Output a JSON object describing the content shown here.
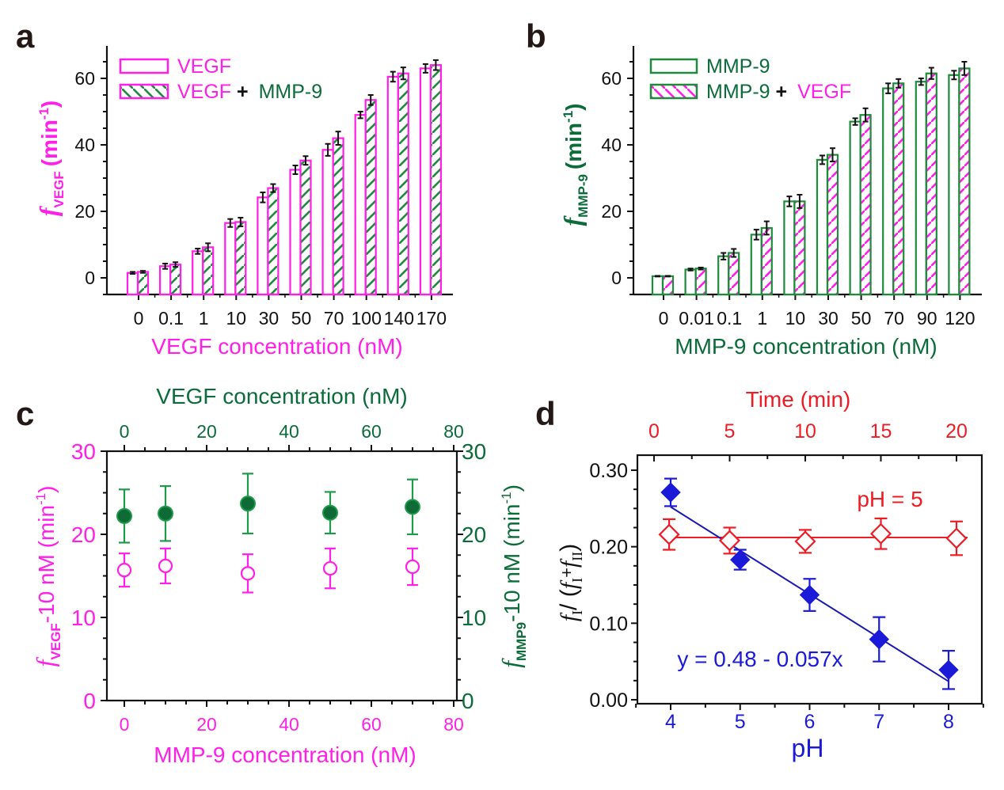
{
  "colors": {
    "magenta": "#ff1fe8",
    "green": "#0c6b3a",
    "bar_green": "#1f8a3c",
    "red": "#ee1c24",
    "blue": "#1a1ad8",
    "black": "#111111"
  },
  "chart_data": [
    {
      "panel_label": "a",
      "type": "bar",
      "categories": [
        "0",
        "0.1",
        "1",
        "10",
        "30",
        "50",
        "70",
        "100",
        "140",
        "170"
      ],
      "series": [
        {
          "name": "VEGF",
          "values": [
            1.5,
            3.5,
            8,
            16.5,
            24.2,
            32.5,
            38.5,
            49,
            60.5,
            63
          ],
          "errors": [
            0.3,
            0.8,
            0.8,
            1.2,
            1.5,
            1.3,
            1.8,
            1,
            1.5,
            1.3
          ],
          "fill": "none",
          "edge": "#ff1fe8"
        },
        {
          "name": "VEGF + MMP-9",
          "name_parts": [
            "VEGF",
            " + ",
            "MMP-9"
          ],
          "values": [
            1.8,
            4,
            9.2,
            16.8,
            27,
            35.3,
            42,
            53.5,
            61.5,
            64
          ],
          "errors": [
            0.3,
            0.7,
            1.2,
            1.3,
            1.2,
            1.3,
            2,
            1.5,
            1.8,
            1.5
          ],
          "fill": "hatched",
          "hatch_color": "#1f8a3c",
          "edge": "#ff1fe8"
        }
      ],
      "xlabel": "VEGF concentration (nM)",
      "ylabel": {
        "symbol": "f",
        "sub": "VEGF",
        "unit": "(min",
        "sup": "-1",
        "close": ")"
      },
      "yticks": [
        "0",
        "20",
        "40",
        "60"
      ],
      "ylim": [
        -5,
        69
      ],
      "legend": "top-left"
    },
    {
      "panel_label": "b",
      "type": "bar",
      "categories": [
        "0",
        "0.01",
        "0.1",
        "1",
        "10",
        "30",
        "50",
        "70",
        "90",
        "120"
      ],
      "series": [
        {
          "name": "MMP-9",
          "values": [
            0.5,
            2.5,
            6.5,
            13,
            23,
            35.5,
            47,
            57,
            59,
            61
          ],
          "errors": [
            0.1,
            0.3,
            1,
            1.5,
            1.5,
            1.3,
            1,
            1.5,
            1,
            1.3
          ],
          "fill": "none",
          "edge": "#1f8a3c"
        },
        {
          "name": "MMP-9 + VEGF",
          "name_parts": [
            "MMP-9",
            " + ",
            "VEGF"
          ],
          "values": [
            0.5,
            2.8,
            7.5,
            15,
            23,
            37,
            49,
            58.5,
            61.5,
            63
          ],
          "errors": [
            0.1,
            0.3,
            1.2,
            2,
            2,
            2,
            2,
            1.3,
            1.7,
            2
          ],
          "fill": "hatched",
          "hatch_color": "#ff1fe8",
          "edge": "#1f8a3c"
        }
      ],
      "xlabel": "MMP-9 concentration (nM)",
      "ylabel": {
        "symbol": "f",
        "sub": "MMP-9",
        "unit": "(min",
        "sup": "-1",
        "close": ")"
      },
      "yticks": [
        "0",
        "20",
        "40",
        "60"
      ],
      "ylim": [
        -5,
        69
      ],
      "legend": "top-left"
    },
    {
      "panel_label": "c",
      "type": "scatter",
      "series": [
        {
          "axis": "bottom-left",
          "marker": "open-circle",
          "color": "#ff1fe8",
          "x": [
            0,
            10,
            30,
            50,
            70
          ],
          "y": [
            15.7,
            16.2,
            15.3,
            15.9,
            16.1
          ],
          "errors": [
            2,
            2.1,
            2.3,
            2.4,
            2.2
          ]
        },
        {
          "axis": "top-right",
          "marker": "filled-circle",
          "color": "#0c6b3a",
          "x": [
            0,
            10,
            30,
            50,
            70
          ],
          "y": [
            22.2,
            22.5,
            23.7,
            22.6,
            23.3
          ],
          "errors": [
            3.2,
            3.3,
            3.6,
            2.5,
            3.3
          ]
        }
      ],
      "xlabel_bottom": "MMP-9 concentration (nM)",
      "xlabel_top": "VEGF concentration (nM)",
      "ylabel_left": {
        "symbol": "f",
        "sub": "VEGF",
        "unit": "-10 nM (min",
        "sup": "-1",
        "close": ")"
      },
      "ylabel_right": {
        "symbol": "f",
        "sub": "MMP9",
        "unit": "-10 nM (min",
        "sup": "-1",
        "close": ")"
      },
      "xticks": [
        "0",
        "20",
        "40",
        "60",
        "80"
      ],
      "yticks": [
        "0",
        "10",
        "20",
        "30"
      ],
      "xlim": [
        -4,
        81
      ],
      "ylim": [
        0,
        30
      ]
    },
    {
      "panel_label": "d",
      "type": "scatter",
      "series": [
        {
          "axis": "bottom",
          "marker": "filled-diamond",
          "color": "#1a1ad8",
          "x": [
            4,
            5,
            6,
            7,
            8
          ],
          "y": [
            0.271,
            0.183,
            0.137,
            0.079,
            0.039
          ],
          "errors": [
            0.018,
            0.013,
            0.021,
            0.029,
            0.025
          ],
          "fit": {
            "intercept": 0.48,
            "slope": -0.057,
            "label": "y = 0.48 - 0.057x"
          }
        },
        {
          "axis": "top",
          "marker": "open-diamond",
          "color": "#ee1c24",
          "x": [
            1,
            5,
            10,
            15,
            20
          ],
          "y": [
            0.216,
            0.208,
            0.207,
            0.217,
            0.211
          ],
          "errors": [
            0.02,
            0.017,
            0.015,
            0.02,
            0.022
          ],
          "mean_line": 0.212,
          "label": "pH = 5"
        }
      ],
      "xlabel_bottom": "pH",
      "xlabel_top": "Time (min)",
      "ylabel": {
        "parts": [
          "f",
          "I",
          "/ (",
          "f",
          "I",
          "+",
          "f",
          "II",
          ")"
        ]
      },
      "xticks_bottom": [
        "4",
        "5",
        "6",
        "7",
        "8"
      ],
      "xticks_top": [
        "0",
        "5",
        "10",
        "15",
        "20"
      ],
      "yticks": [
        "0.00",
        "0.10",
        "0.20",
        "0.30"
      ],
      "xlim": [
        3.52,
        8.48
      ],
      "ylim": [
        -0.005,
        0.32
      ]
    }
  ]
}
